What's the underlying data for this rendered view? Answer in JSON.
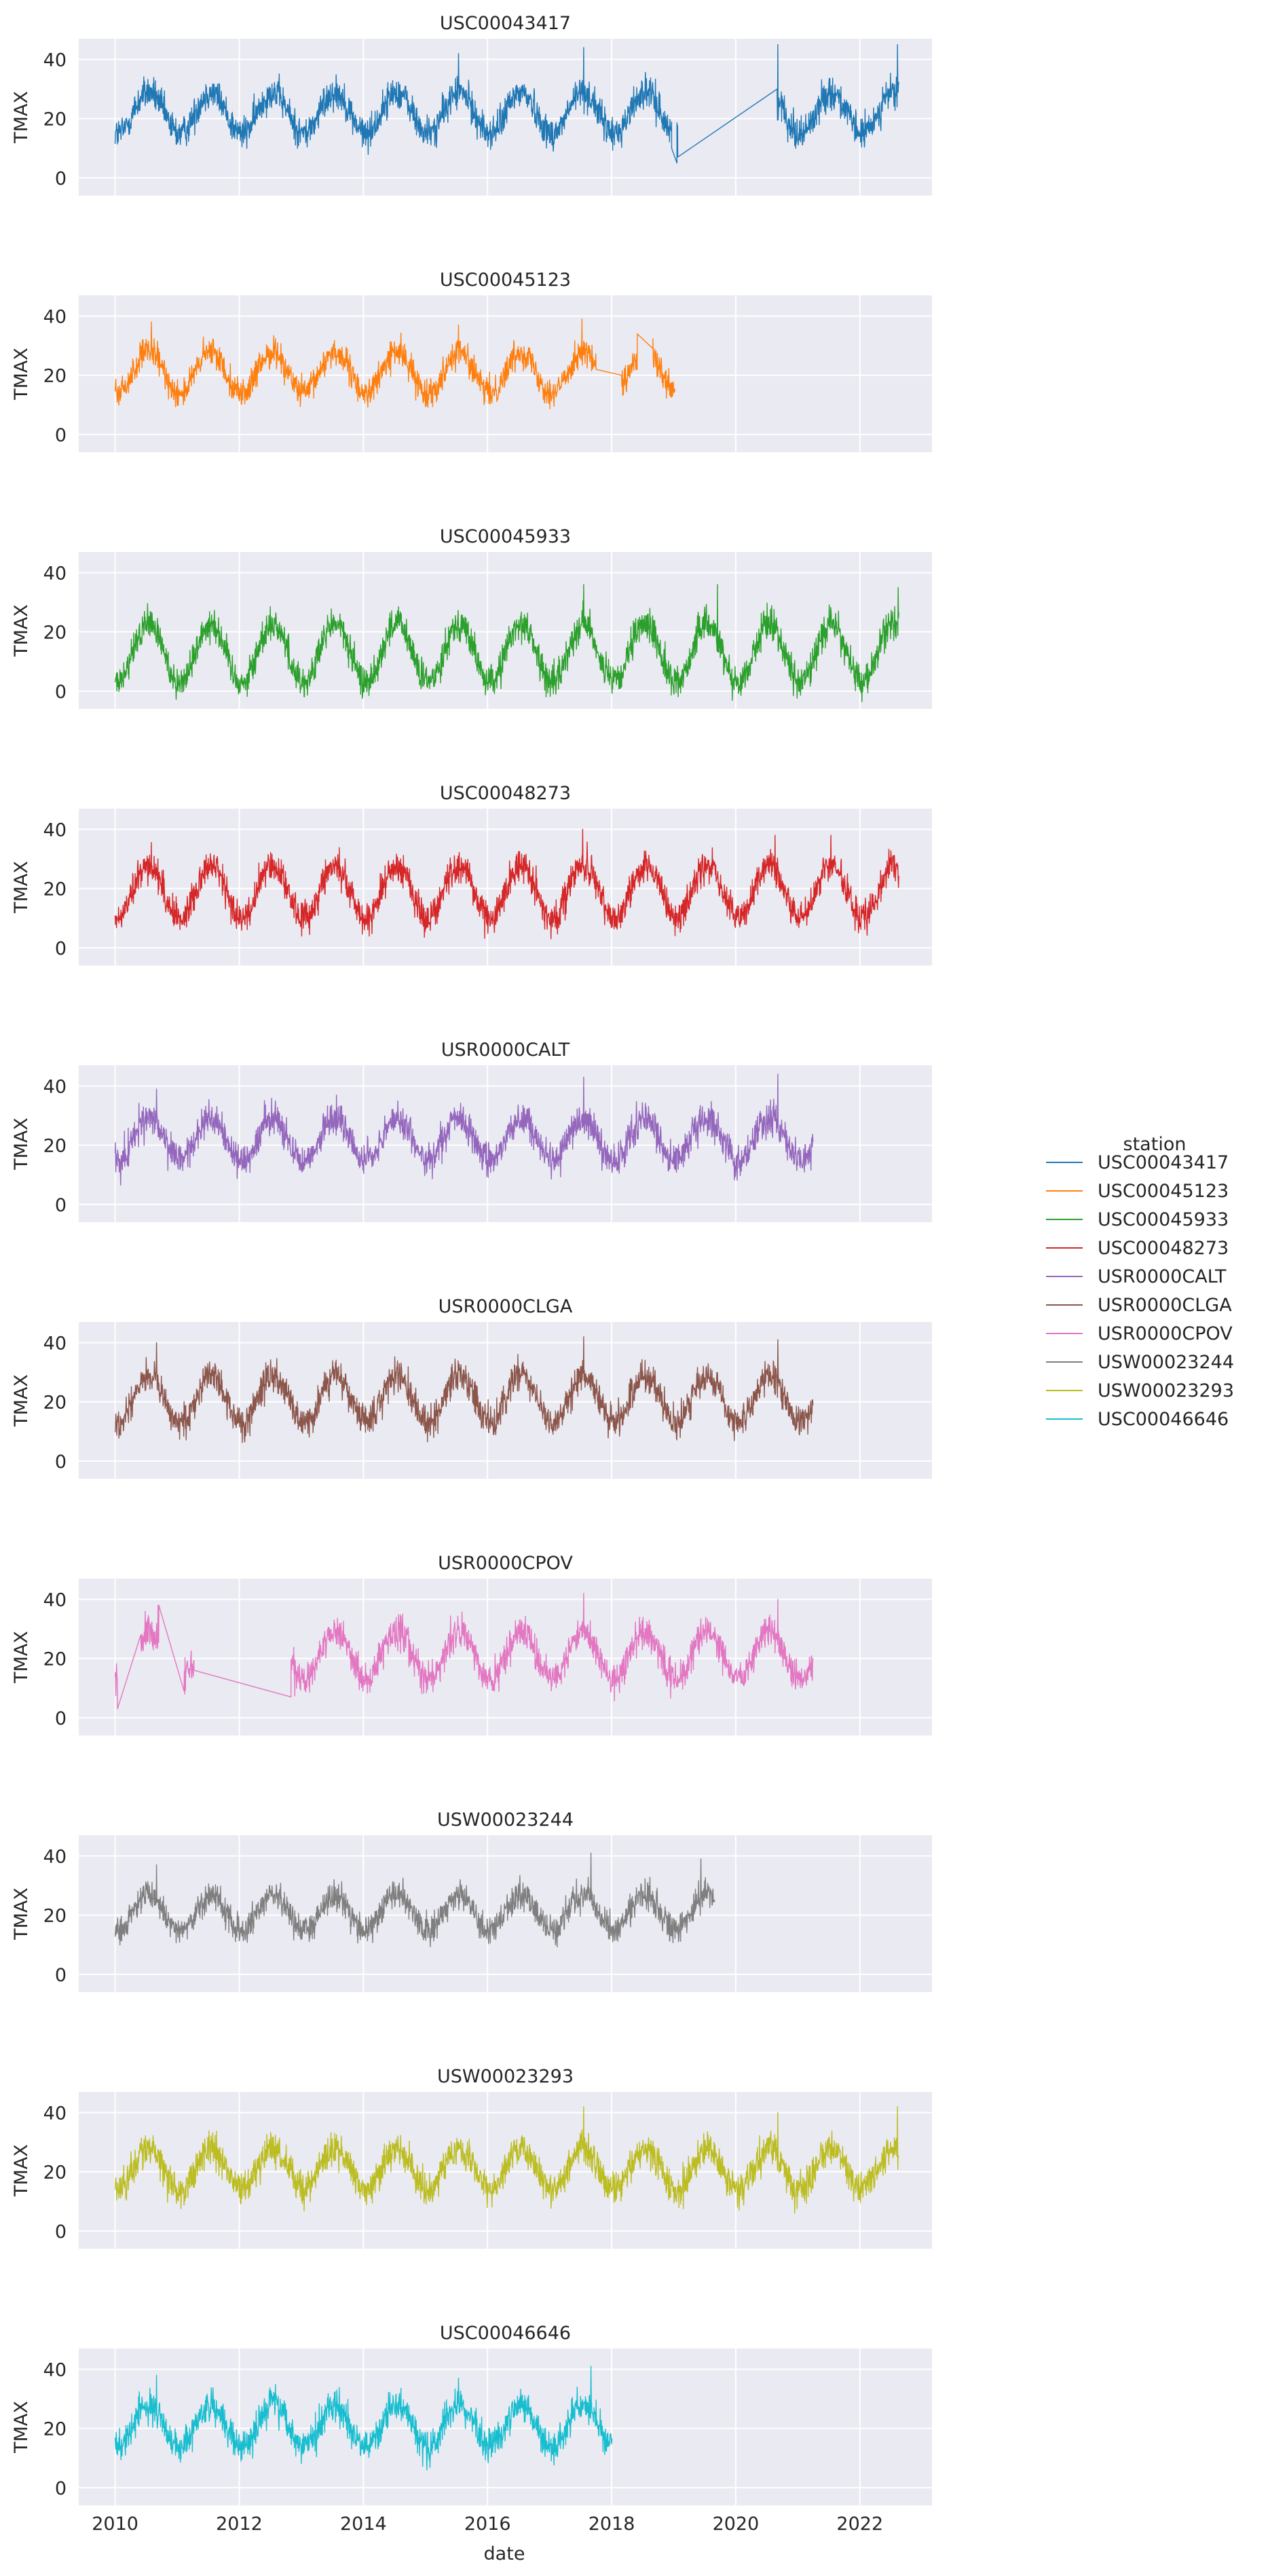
{
  "figure": {
    "legend_title": "station",
    "x_axis_label": "date",
    "y_axis_label": "TMAX"
  },
  "chart_data": {
    "type": "line",
    "layout": "small-multiples, one panel per station, shared x and y axes",
    "grid": true,
    "legend_placement": "right-center",
    "x_range": [
      "2009-06-01",
      "2023-03-01"
    ],
    "x_ticks": [
      "2010",
      "2012",
      "2014",
      "2016",
      "2018",
      "2020",
      "2022"
    ],
    "y_range": [
      -6,
      47
    ],
    "y_ticks": [
      0,
      20,
      40
    ],
    "series": [
      {
        "name": "USC00043417",
        "color": "#1f77b4",
        "mean": 22,
        "amplitude": 7,
        "noise": 4,
        "segments": [
          [
            "2010-01-01",
            "2018-12-20"
          ],
          [
            "2019-01-20",
            "2019-01-25"
          ],
          [
            "2020-09-01",
            "2022-08-20"
          ]
        ],
        "points": [
          [
            "2018-12-20",
            10
          ],
          [
            "2019-01-20",
            5
          ],
          [
            "2019-01-25",
            7
          ],
          [
            "2020-09-01",
            30
          ]
        ],
        "peaks": [
          [
            "2020-09-05",
            45
          ],
          [
            "2022-08-10",
            45
          ],
          [
            "2017-07-20",
            44
          ],
          [
            "2015-07-15",
            42
          ]
        ]
      },
      {
        "name": "USC00045123",
        "color": "#ff7f0e",
        "mean": 21,
        "amplitude": 7,
        "noise": 3.5,
        "segments": [
          [
            "2010-01-01",
            "2017-10-01"
          ],
          [
            "2018-03-01",
            "2018-06-01"
          ],
          [
            "2018-09-01",
            "2019-01-10"
          ]
        ],
        "points": [
          [
            "2017-10-01",
            22
          ],
          [
            "2018-03-01",
            20
          ],
          [
            "2018-06-01",
            34
          ],
          [
            "2018-09-01",
            29
          ]
        ],
        "peaks": [
          [
            "2017-07-10",
            39
          ],
          [
            "2010-08-01",
            38
          ],
          [
            "2015-07-15",
            37
          ]
        ]
      },
      {
        "name": "USC00045933",
        "color": "#2ca02c",
        "mean": 13,
        "amplitude": 10,
        "noise": 4,
        "segments": [
          [
            "2010-01-01",
            "2022-08-20"
          ]
        ],
        "points": [],
        "peaks": [
          [
            "2019-09-15",
            36
          ],
          [
            "2017-07-20",
            36
          ],
          [
            "2022-08-15",
            35
          ]
        ]
      },
      {
        "name": "USC00048273",
        "color": "#d62728",
        "mean": 19,
        "amplitude": 9,
        "noise": 4,
        "segments": [
          [
            "2010-01-01",
            "2022-08-20"
          ]
        ],
        "points": [],
        "peaks": [
          [
            "2017-07-15",
            40
          ],
          [
            "2020-08-20",
            38
          ],
          [
            "2021-07-15",
            38
          ]
        ]
      },
      {
        "name": "USR0000CALT",
        "color": "#9467bd",
        "mean": 22,
        "amplitude": 7,
        "noise": 4,
        "segments": [
          [
            "2010-01-01",
            "2021-04-01"
          ]
        ],
        "points": [],
        "peaks": [
          [
            "2020-09-05",
            44
          ],
          [
            "2017-07-20",
            43
          ],
          [
            "2010-09-01",
            39
          ]
        ]
      },
      {
        "name": "USR0000CLGA",
        "color": "#8c564b",
        "mean": 21,
        "amplitude": 8,
        "noise": 4,
        "segments": [
          [
            "2010-01-01",
            "2021-04-01"
          ]
        ],
        "points": [],
        "peaks": [
          [
            "2017-07-20",
            42
          ],
          [
            "2020-09-05",
            41
          ],
          [
            "2010-09-01",
            40
          ]
        ]
      },
      {
        "name": "USR0000CPOV",
        "color": "#e377c2",
        "mean": 21,
        "amplitude": 8,
        "noise": 4,
        "segments": [
          [
            "2010-01-01",
            "2010-01-15"
          ],
          [
            "2010-06-01",
            "2010-09-15"
          ],
          [
            "2011-02-10",
            "2011-04-10"
          ],
          [
            "2012-11-01",
            "2021-04-01"
          ]
        ],
        "points": [
          [
            "2010-01-15",
            3
          ],
          [
            "2010-06-01",
            28
          ],
          [
            "2010-09-15",
            38
          ],
          [
            "2011-02-10",
            9
          ],
          [
            "2011-04-10",
            16
          ],
          [
            "2012-11-01",
            7
          ]
        ],
        "peaks": [
          [
            "2017-07-20",
            42
          ],
          [
            "2020-09-05",
            40
          ],
          [
            "2010-09-10",
            38
          ]
        ]
      },
      {
        "name": "USW00023244",
        "color": "#7f7f7f",
        "mean": 21,
        "amplitude": 6,
        "noise": 3.5,
        "segments": [
          [
            "2010-01-01",
            "2019-09-01"
          ]
        ],
        "points": [],
        "peaks": [
          [
            "2017-09-01",
            41
          ],
          [
            "2019-06-10",
            39
          ],
          [
            "2010-09-01",
            37
          ]
        ]
      },
      {
        "name": "USW00023293",
        "color": "#bcbd22",
        "mean": 21,
        "amplitude": 7,
        "noise": 4,
        "segments": [
          [
            "2010-01-01",
            "2022-08-20"
          ]
        ],
        "points": [],
        "peaks": [
          [
            "2017-07-20",
            42
          ],
          [
            "2022-08-10",
            42
          ],
          [
            "2020-09-05",
            40
          ]
        ]
      },
      {
        "name": "USC00046646",
        "color": "#17becf",
        "mean": 21,
        "amplitude": 7,
        "noise": 4,
        "segments": [
          [
            "2010-01-01",
            "2018-01-05"
          ]
        ],
        "points": [],
        "peaks": [
          [
            "2017-09-01",
            41
          ],
          [
            "2010-09-01",
            38
          ],
          [
            "2015-07-15",
            37
          ]
        ]
      }
    ]
  }
}
